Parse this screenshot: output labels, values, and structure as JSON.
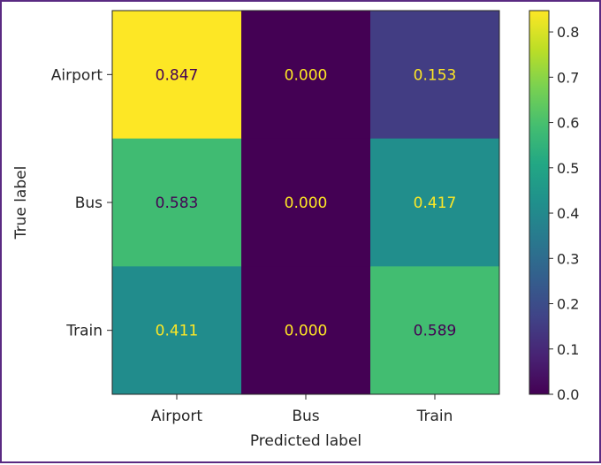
{
  "chart_data": {
    "type": "heatmap",
    "title": "",
    "xlabel": "Predicted label",
    "ylabel": "True label",
    "x_categories": [
      "Airport",
      "Bus",
      "Train"
    ],
    "y_categories": [
      "Airport",
      "Bus",
      "Train"
    ],
    "values": [
      [
        0.847,
        0.0,
        0.153
      ],
      [
        0.583,
        0.0,
        0.417
      ],
      [
        0.411,
        0.0,
        0.589
      ]
    ],
    "value_labels": [
      [
        "0.847",
        "0.000",
        "0.153"
      ],
      [
        "0.583",
        "0.000",
        "0.417"
      ],
      [
        "0.411",
        "0.000",
        "0.589"
      ]
    ],
    "colormap": "viridis",
    "colorbar": {
      "range": [
        0.0,
        0.847
      ],
      "ticks": [
        0.0,
        0.1,
        0.2,
        0.3,
        0.4,
        0.5,
        0.6,
        0.7,
        0.8
      ],
      "tick_labels": [
        "0.0",
        "0.1",
        "0.2",
        "0.3",
        "0.4",
        "0.5",
        "0.6",
        "0.7",
        "0.8"
      ]
    },
    "grid": false
  },
  "colors": {
    "frame_border": "#5a2a82",
    "text_dark": "#262626",
    "label_light": "#fde725",
    "label_dark": "#440154"
  }
}
